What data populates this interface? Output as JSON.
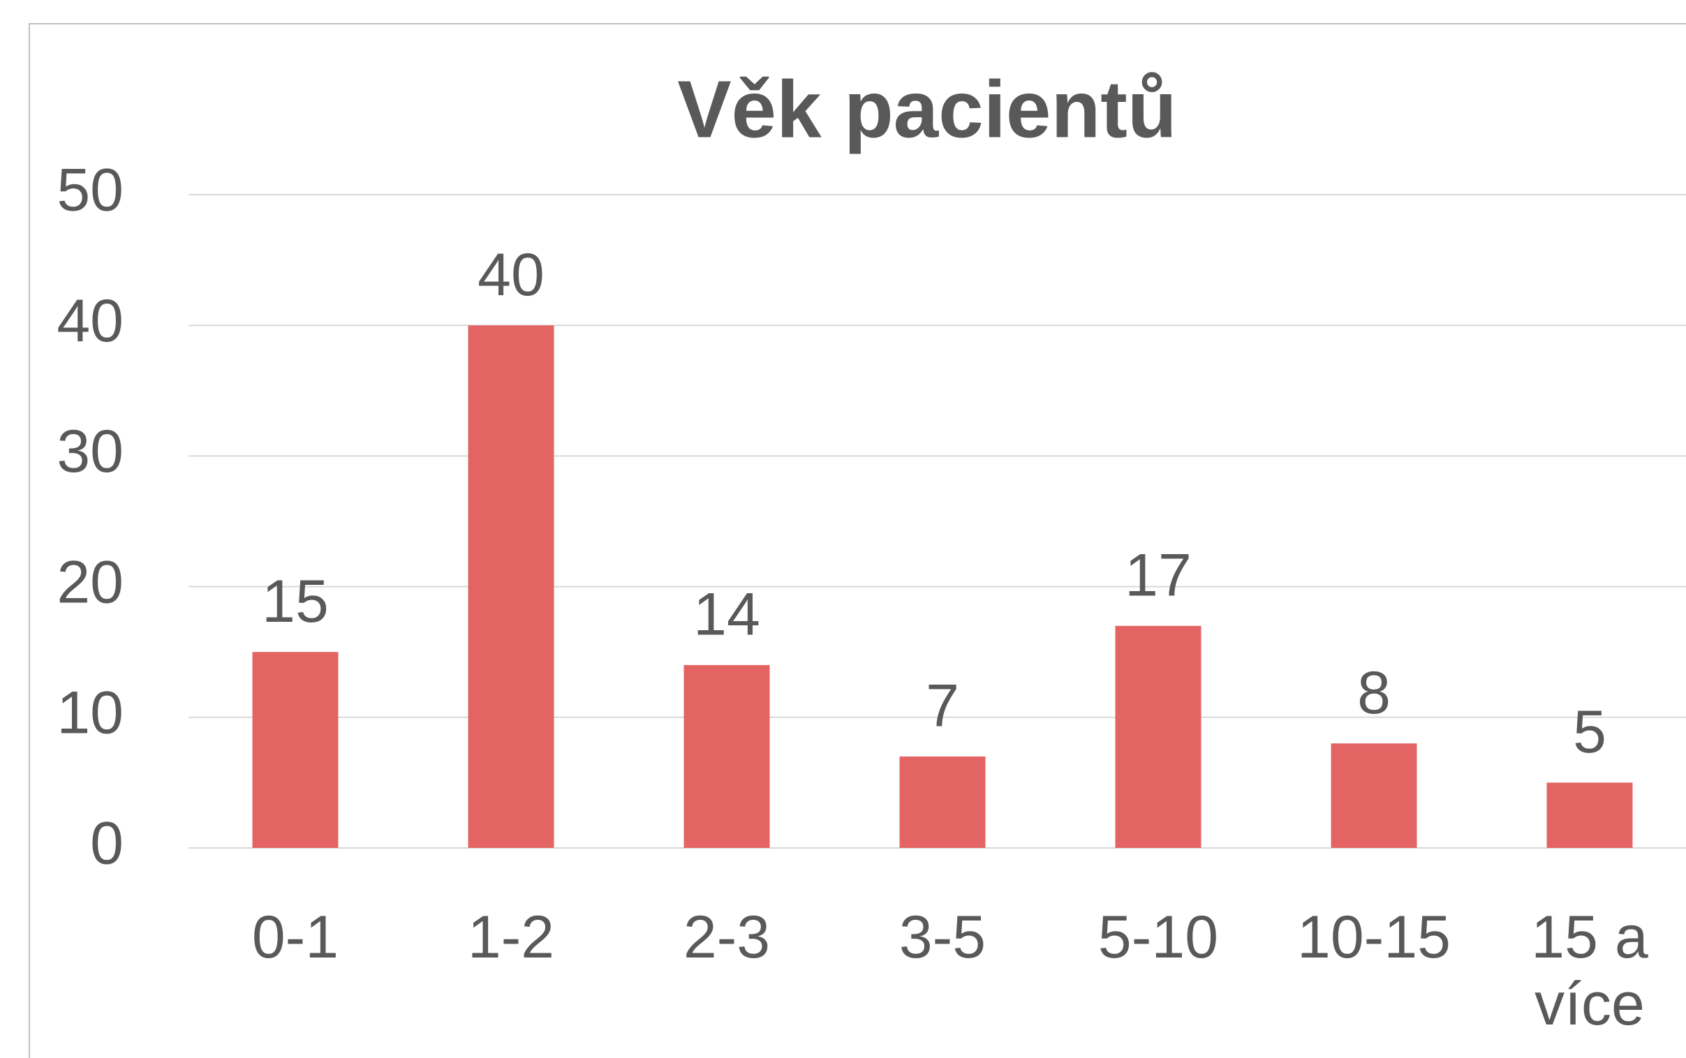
{
  "chart_data": {
    "type": "bar",
    "title": "Věk pacientů",
    "categories": [
      "0-1",
      "1-2",
      "2-3",
      "3-5",
      "5-10",
      "10-15",
      "15 a více"
    ],
    "values": [
      15,
      40,
      14,
      7,
      17,
      8,
      5
    ],
    "color": "#e46464",
    "ylim": [
      0,
      50
    ],
    "yticks": [
      0,
      10,
      20,
      30,
      40,
      50
    ],
    "grid": true
  }
}
